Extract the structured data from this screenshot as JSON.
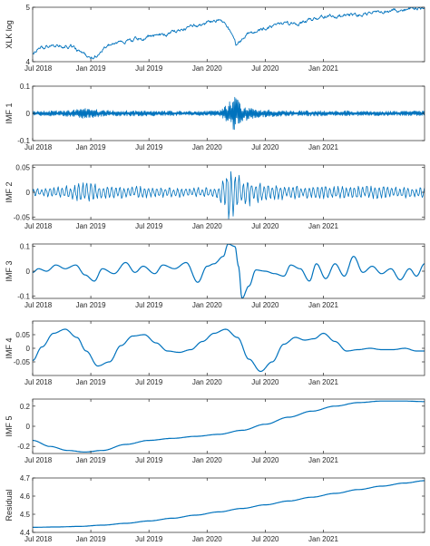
{
  "chart_data": [
    {
      "type": "line",
      "ylabel": "XLK log",
      "ylim": [
        4,
        5
      ],
      "yticks": [
        4,
        5
      ],
      "xticks": [
        "Jul 2018",
        "Jan 2019",
        "Jul 2019",
        "Jan 2020",
        "Jul 2020",
        "Jan 2021"
      ],
      "x": [
        2018.5,
        2018.6,
        2018.75,
        2018.85,
        2018.92,
        2019.0,
        2019.15,
        2019.3,
        2019.5,
        2019.65,
        2019.8,
        2020.0,
        2020.12,
        2020.2,
        2020.25,
        2020.35,
        2020.5,
        2020.65,
        2020.8,
        2021.0,
        2021.2,
        2021.4,
        2021.55,
        2021.7,
        2021.85
      ],
      "values": [
        4.18,
        4.26,
        4.3,
        4.28,
        4.15,
        4.05,
        4.3,
        4.38,
        4.45,
        4.5,
        4.6,
        4.72,
        4.78,
        4.55,
        4.3,
        4.52,
        4.62,
        4.68,
        4.72,
        4.8,
        4.85,
        4.88,
        4.92,
        4.96,
        4.98
      ]
    },
    {
      "type": "line",
      "ylabel": "IMF 1",
      "ylim": [
        -0.1,
        0.1
      ],
      "yticks": [
        -0.1,
        0,
        0.1
      ],
      "xticks": [
        "Jul 2018",
        "Jan 2019",
        "Jul 2019",
        "Jan 2020",
        "Jul 2020",
        "Jan 2021"
      ],
      "x": [
        2018.5,
        2018.8,
        2018.95,
        2019.1,
        2019.5,
        2019.9,
        2020.1,
        2020.18,
        2020.22,
        2020.3,
        2020.45,
        2020.7,
        2021.0,
        2021.4,
        2021.85
      ],
      "values": [
        0.008,
        0.012,
        0.02,
        0.012,
        0.01,
        0.008,
        0.01,
        0.035,
        0.08,
        0.03,
        0.015,
        0.01,
        0.01,
        0.009,
        0.009
      ]
    },
    {
      "type": "line",
      "ylabel": "IMF 2",
      "ylim": [
        -0.055,
        0.055
      ],
      "yticks": [
        -0.05,
        0,
        0.05
      ],
      "xticks": [
        "Jul 2018",
        "Jan 2019",
        "Jul 2019",
        "Jan 2020",
        "Jul 2020",
        "Jan 2021"
      ],
      "x": [
        2018.5,
        2018.8,
        2018.95,
        2019.1,
        2019.5,
        2019.9,
        2020.1,
        2020.16,
        2020.22,
        2020.3,
        2020.45,
        2020.7,
        2021.0,
        2021.4,
        2021.85
      ],
      "values": [
        0.008,
        0.014,
        0.025,
        0.015,
        0.012,
        0.01,
        0.015,
        0.055,
        0.06,
        0.035,
        0.02,
        0.015,
        0.015,
        0.015,
        0.012
      ]
    },
    {
      "type": "line",
      "ylabel": "IMF 3",
      "ylim": [
        -0.11,
        0.11
      ],
      "yticks": [
        -0.1,
        0,
        0.1
      ],
      "xticks": [
        "Jul 2018",
        "Jan 2019",
        "Jul 2019",
        "Jan 2020",
        "Jul 2020",
        "Jan 2021"
      ],
      "x": [
        2018.5,
        2018.55,
        2018.62,
        2018.7,
        2018.78,
        2018.87,
        2018.95,
        2019.03,
        2019.1,
        2019.2,
        2019.3,
        2019.38,
        2019.45,
        2019.55,
        2019.62,
        2019.72,
        2019.82,
        2019.92,
        2020.0,
        2020.06,
        2020.14,
        2020.18,
        2020.24,
        2020.27,
        2020.3,
        2020.36,
        2020.42,
        2020.5,
        2020.58,
        2020.66,
        2020.72,
        2020.8,
        2020.88,
        2020.94,
        2021.02,
        2021.1,
        2021.18,
        2021.26,
        2021.34,
        2021.42,
        2021.5,
        2021.58,
        2021.66,
        2021.74,
        2021.8,
        2021.87
      ],
      "values": [
        -0.005,
        0.01,
        0.0,
        0.025,
        0.01,
        0.025,
        -0.015,
        -0.04,
        0.01,
        -0.01,
        0.035,
        -0.005,
        0.02,
        -0.01,
        0.025,
        0.01,
        0.035,
        -0.045,
        0.02,
        0.03,
        0.06,
        0.11,
        0.1,
        0.02,
        -0.11,
        -0.06,
        0.005,
        0.0,
        -0.01,
        -0.02,
        0.025,
        0.01,
        -0.04,
        0.03,
        -0.03,
        0.03,
        -0.02,
        0.06,
        -0.005,
        0.02,
        -0.01,
        0.01,
        -0.035,
        0.01,
        -0.02,
        0.03
      ]
    },
    {
      "type": "line",
      "ylabel": "IMF 4",
      "ylim": [
        -0.1,
        0.1
      ],
      "yticks": [
        -0.05,
        0,
        0.05
      ],
      "xticks": [
        "Jul 2018",
        "Jan 2019",
        "Jul 2019",
        "Jan 2020",
        "Jul 2020",
        "Jan 2021"
      ],
      "x": [
        2018.5,
        2018.58,
        2018.68,
        2018.78,
        2018.88,
        2018.96,
        2019.06,
        2019.16,
        2019.26,
        2019.36,
        2019.46,
        2019.56,
        2019.66,
        2019.76,
        2019.86,
        2019.96,
        2020.06,
        2020.16,
        2020.26,
        2020.36,
        2020.46,
        2020.56,
        2020.66,
        2020.76,
        2020.84,
        2020.92,
        2021.0,
        2021.1,
        2021.2,
        2021.3,
        2021.4,
        2021.5,
        2021.6,
        2021.7,
        2021.8,
        2021.87
      ],
      "values": [
        -0.045,
        0.005,
        0.055,
        0.07,
        0.04,
        -0.01,
        -0.065,
        -0.05,
        0.01,
        0.045,
        0.05,
        0.02,
        -0.01,
        -0.015,
        -0.005,
        0.025,
        0.055,
        0.07,
        0.04,
        -0.04,
        -0.085,
        -0.05,
        0.015,
        0.04,
        0.03,
        0.035,
        0.055,
        0.025,
        -0.01,
        -0.005,
        0.0,
        -0.005,
        -0.005,
        0.0,
        -0.01,
        -0.01
      ]
    },
    {
      "type": "line",
      "ylabel": "IMF 5",
      "ylim": [
        -0.27,
        0.27
      ],
      "yticks": [
        -0.2,
        0,
        0.2
      ],
      "xticks": [
        "Jul 2018",
        "Jan 2019",
        "Jul 2019",
        "Jan 2020",
        "Jul 2020",
        "Jan 2021"
      ],
      "x": [
        2018.5,
        2018.65,
        2018.8,
        2018.95,
        2019.1,
        2019.3,
        2019.5,
        2019.7,
        2019.9,
        2020.1,
        2020.3,
        2020.5,
        2020.7,
        2020.9,
        2021.1,
        2021.3,
        2021.5,
        2021.7,
        2021.87
      ],
      "values": [
        -0.14,
        -0.2,
        -0.24,
        -0.255,
        -0.24,
        -0.18,
        -0.14,
        -0.12,
        -0.1,
        -0.08,
        -0.04,
        0.02,
        0.09,
        0.15,
        0.2,
        0.235,
        0.25,
        0.25,
        0.245
      ]
    },
    {
      "type": "line",
      "ylabel": "Residual",
      "ylim": [
        4.4,
        4.7
      ],
      "yticks": [
        4.4,
        4.5,
        4.6,
        4.7
      ],
      "xticks": [
        "Jul 2018",
        "Jan 2019",
        "Jul 2019",
        "Jan 2020",
        "Jul 2020",
        "Jan 2021"
      ],
      "x": [
        2018.5,
        2018.7,
        2018.9,
        2019.1,
        2019.3,
        2019.5,
        2019.7,
        2019.9,
        2020.1,
        2020.3,
        2020.5,
        2020.7,
        2020.9,
        2021.1,
        2021.3,
        2021.5,
        2021.7,
        2021.87
      ],
      "values": [
        4.428,
        4.43,
        4.433,
        4.44,
        4.45,
        4.463,
        4.478,
        4.495,
        4.513,
        4.532,
        4.552,
        4.573,
        4.594,
        4.615,
        4.636,
        4.655,
        4.672,
        4.685
      ]
    }
  ]
}
